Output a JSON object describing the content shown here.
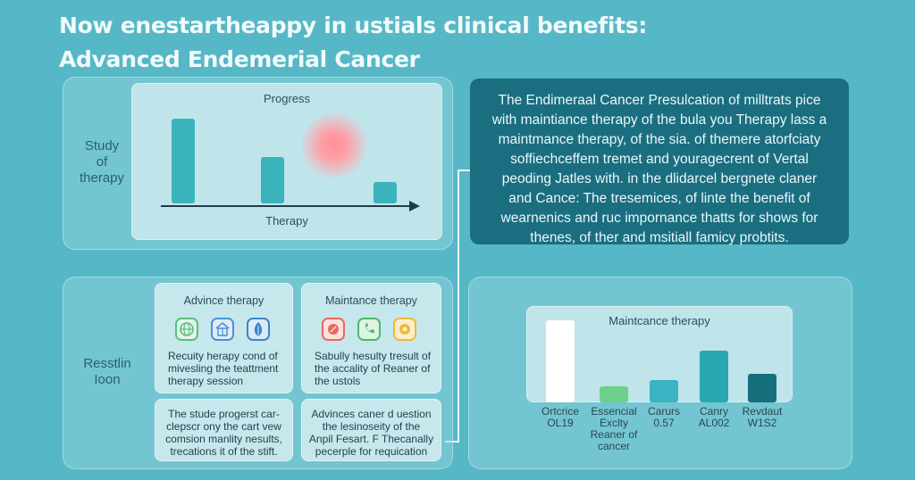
{
  "title": {
    "line1": "Now enestartheappy in ustials clinical benefits:",
    "line2": "Advanced Endemerial Cancer"
  },
  "study_panel": {
    "side_label": [
      "Study",
      "of",
      "therapy"
    ],
    "chart": {
      "title": "Progress",
      "xlabel": "Therapy",
      "values": [
        95,
        52,
        24
      ]
    }
  },
  "summary": {
    "lines": [
      "The Endimeraal Cancer Presulcation of milltrats pice",
      "with maintiance therapy of the bula you Therapy lass a",
      "maintmance therapy, of the sia. of themere atorfciaty",
      "soffiechceffem tremet and youragecrent of Vertal",
      "peoding Jatles with. in the dlidarcel bergnete claner",
      "and Cance: The tresemices, of linte the benefit of",
      "wearnenics and ruc impornance thatts for shows for",
      "thenes, of ther and msitiall famicy probtits."
    ]
  },
  "results_panel": {
    "side_label": [
      "Resstlin",
      "Ioon"
    ],
    "cards": [
      {
        "heading": "Advince therapy",
        "icons": [
          "globe-icon",
          "building-icon",
          "leaf-icon"
        ],
        "icon_colors": [
          "#5cc07a",
          "#4a90d8",
          "#3a86c8"
        ],
        "text": [
          "Recuity herapy cond of",
          "mivesling the teattment",
          "therapy session"
        ]
      },
      {
        "heading": "Maintance therapy",
        "icons": [
          "ribbon-icon",
          "phone-icon",
          "badge-icon"
        ],
        "icon_colors": [
          "#e76a5e",
          "#4cba6a",
          "#f1b73a"
        ],
        "text": [
          "Sabully hesulty tresult of",
          "the accality of Reaner of",
          "the ustols"
        ]
      },
      {
        "text": [
          "The stude progerst car-",
          "clepscr ony the cart vew",
          "comsion manlity nesults,",
          "trecations it of the stift."
        ]
      },
      {
        "text": [
          "Advinces caner d uestion",
          "the lesinoseity of the",
          "Anpil Fesart. F Thecanally",
          "pecerple for requication"
        ]
      }
    ]
  },
  "maintenance_chart": {
    "chart_data": {
      "type": "bar",
      "title": "Maintcance therapy",
      "categories": [
        [
          "Ortcrice",
          "OL19"
        ],
        [
          "Essencial",
          "Exclty",
          "Reaner of",
          "cancer"
        ],
        [
          "Carurs",
          "0.57"
        ],
        [
          "Canry",
          "AL002"
        ],
        [
          "Revdaut",
          "W1S2"
        ]
      ],
      "values": [
        80,
        16,
        22,
        50,
        28
      ],
      "colors": [
        "#ffffff",
        "#6ccf8a",
        "#3ab3c4",
        "#2aa7b3",
        "#16707c"
      ]
    }
  }
}
